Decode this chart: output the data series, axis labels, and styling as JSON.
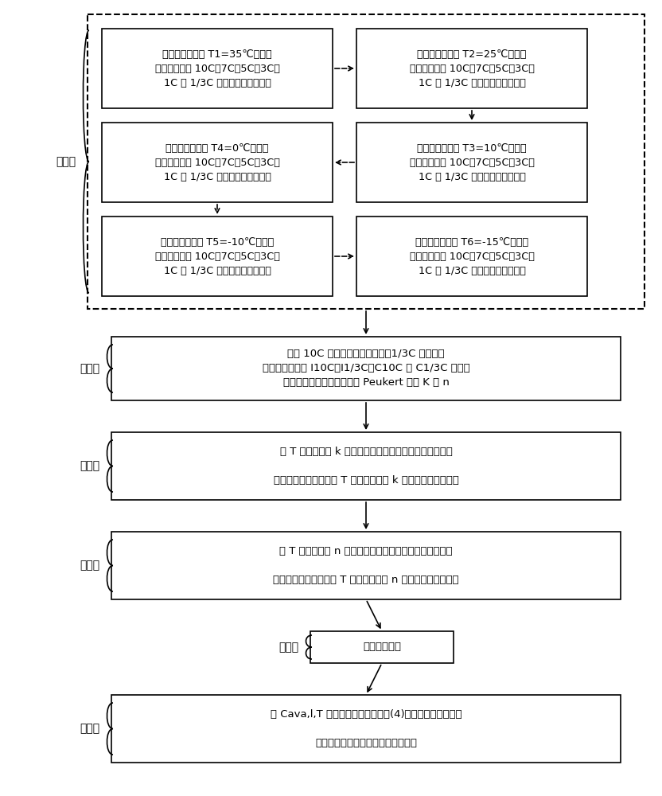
{
  "title": "",
  "bg_color": "#ffffff",
  "step1_label": "步骤一",
  "step2_label": "步骤二",
  "step3_label": "步骤三",
  "step4_label": "步骤四",
  "step5_label": "步骤五",
  "step6_label": "步骤六",
  "box_T1": "将锂离子电池在 T1=35℃的温度\n条件下，进行 10C、7C、5C、3C、\n1C 和 1/3C 六个倍率的放电试验",
  "box_T2": "将锂离子电池在 T2=25℃的温度\n条件下，进行 10C、7C、5C、3C、\n1C 和 1/3C 六个倍率的放电试验",
  "box_T3": "将锂离子电池在 T3=10℃的温度\n条件下，进行 10C、7C、5C、3C、\n1C 和 1/3C 六个倍率的放电试验",
  "box_T4": "将锂离子电池在 T4=0℃的温度\n条件下，进行 10C、7C、5C、3C、\n1C 和 1/3C 六个倍率的放电试验",
  "box_T5": "将锂离子电池在 T5=-10℃的温度\n条件下，进行 10C、7C、5C、3C、\n1C 和 1/3C 六个倍率的放电试验",
  "box_T6": "将锂离子电池在 T6=-15℃的温度\n条件下，进行 10C、7C、5C、3C、\n1C 和 1/3C 六个倍率的放电试验",
  "box_step2": "选择 10C 倍率为最高放电电流，1/3C 倍率为最\n低放电电流，以 I10C，I1/3C，C10C 和 C1/3C 为计算\n数据，得到六个温度条件的 Peukert 系数 K 和 n",
  "box_step3": "以 T 为横轴，以 k 轴为纵轴，对六点进行曲线拟合，并使\n\n用最小二乘法，得到以 T 为自变量，以 k 为因变量的拟合公式",
  "box_step4": "以 T 为横轴，以 n 轴为纵轴，对六点进行曲线拟合，并使\n\n用最小二乘法，得到以 T 为自变量，以 n 为因变量的拟合公式",
  "box_step5": "可用容量公式",
  "box_step6": "将 Cava,l,T 带入电池剩余电量公式(4)对不同温度环境下的\n\n功率型锂离子电池剩余电量进行估计"
}
